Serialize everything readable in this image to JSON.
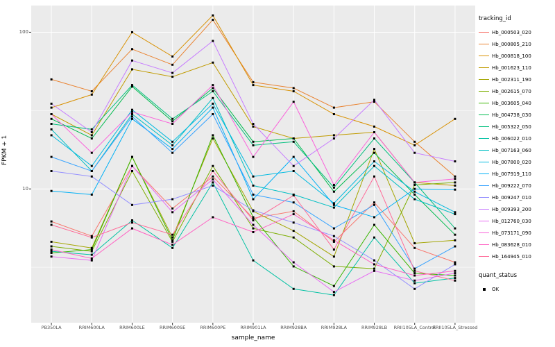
{
  "chart_data": {
    "type": "line",
    "title": "",
    "xlabel": "sample_name",
    "ylabel": "FPKM + 1",
    "y_scale": "log10",
    "ylim": [
      1.4,
      148
    ],
    "y_ticks": [
      10,
      100
    ],
    "y_tick_labels": [
      "10",
      "100"
    ],
    "y_minor_ticks": [
      3.162,
      31.62
    ],
    "legend_title": "tracking_id",
    "legend2_title": "quant_status",
    "legend2_items": [
      "OK"
    ],
    "panel_background": "#EBEBEB",
    "grid_color": "#FFFFFF",
    "point_color": "#000000",
    "point_shape": "square",
    "categories": [
      "PB350LA",
      "RRIM600LA",
      "RRIM600LE",
      "RRIM600SE",
      "RRIM600PE",
      "RRIM901LA",
      "RRIM928BA",
      "RRIM928LA",
      "RRIM928LB",
      "RRII105LA_Control",
      "RRII105LA_Stressed"
    ],
    "series": [
      {
        "name": "Hb_000503_020",
        "color": "#F8766D",
        "values": [
          6.2,
          5.0,
          14,
          7.5,
          12,
          6.5,
          7.2,
          4.6,
          8.2,
          4.2,
          3.4
        ]
      },
      {
        "name": "Hb_000805_210",
        "color": "#EA8331",
        "values": [
          50,
          42,
          78,
          62,
          120,
          48,
          44,
          33,
          36,
          20,
          12
        ]
      },
      {
        "name": "Hb_000818_100",
        "color": "#D89000",
        "values": [
          33,
          40,
          100,
          70,
          128,
          46,
          42,
          30,
          25,
          19,
          28
        ]
      },
      {
        "name": "Hb_001623_110",
        "color": "#C09B00",
        "values": [
          30,
          22,
          58,
          52,
          64,
          25,
          21,
          22,
          23,
          11,
          10.5
        ]
      },
      {
        "name": "Hb_002311_190",
        "color": "#A3A500",
        "values": [
          4.6,
          4.2,
          16,
          4.9,
          21,
          7.2,
          5.4,
          3.7,
          18,
          4.5,
          4.7
        ]
      },
      {
        "name": "Hb_002615_070",
        "color": "#7CAE00",
        "values": [
          4.3,
          4.0,
          13,
          4.6,
          14,
          5.6,
          4.9,
          3.2,
          3.1,
          10.6,
          11
        ]
      },
      {
        "name": "Hb_003605_040",
        "color": "#39B600",
        "values": [
          3.9,
          4.1,
          16,
          4.7,
          22,
          6.6,
          3.2,
          2.4,
          5.9,
          2.9,
          2.8
        ]
      },
      {
        "name": "Hb_004738_030",
        "color": "#00BB4E",
        "values": [
          28,
          21,
          45,
          27,
          44,
          20,
          21,
          9.6,
          17,
          9.2,
          5.1
        ]
      },
      {
        "name": "Hb_005322_050",
        "color": "#00BF7D",
        "values": [
          26,
          24,
          46,
          28,
          42,
          19,
          20,
          10.2,
          21,
          11,
          5.6
        ]
      },
      {
        "name": "Hb_006022_010",
        "color": "#00C1A3",
        "values": [
          4.0,
          3.8,
          6.3,
          4.2,
          11,
          3.5,
          2.3,
          2.1,
          4.9,
          2.5,
          2.7
        ]
      },
      {
        "name": "Hb_007163_060",
        "color": "#00BFC4",
        "values": [
          24,
          13,
          30,
          19,
          38,
          10.5,
          9.2,
          7.6,
          14,
          8.6,
          6.9
        ]
      },
      {
        "name": "Hb_007800_020",
        "color": "#00BAE0",
        "values": [
          22,
          14,
          32,
          20,
          35,
          12,
          13,
          8.1,
          15,
          9.6,
          7.1
        ]
      },
      {
        "name": "Hb_007919_110",
        "color": "#00B0F6",
        "values": [
          9.7,
          9.2,
          28,
          18,
          33,
          8.6,
          16,
          7.9,
          6.6,
          10,
          9.9
        ]
      },
      {
        "name": "Hb_009222_070",
        "color": "#35A2FF",
        "values": [
          16,
          13,
          29,
          17,
          30,
          9.2,
          8.2,
          5.6,
          7.9,
          3.1,
          4.3
        ]
      },
      {
        "name": "Hb_009247_010",
        "color": "#9590FF",
        "values": [
          13,
          12,
          7.9,
          8.6,
          10.5,
          7.3,
          6.1,
          5.0,
          3.5,
          2.3,
          3.3
        ]
      },
      {
        "name": "Hb_009393_200",
        "color": "#C77CFF",
        "values": [
          35,
          23,
          66,
          55,
          88,
          26,
          14,
          21,
          37,
          17,
          15
        ]
      },
      {
        "name": "Hb_012760_030",
        "color": "#E76BF3",
        "values": [
          3.7,
          3.5,
          14,
          7.1,
          11.5,
          5.9,
          3.4,
          2.2,
          3.0,
          2.6,
          2.9
        ]
      },
      {
        "name": "Hb_073171_090",
        "color": "#FA62DB",
        "values": [
          30,
          17,
          31,
          26,
          46,
          16,
          36,
          10.6,
          23,
          11,
          11.6
        ]
      },
      {
        "name": "Hb_083628_010",
        "color": "#FF61C3",
        "values": [
          4.1,
          3.6,
          5.6,
          4.4,
          6.6,
          5.3,
          6.9,
          4.7,
          3.3,
          2.8,
          3.0
        ]
      },
      {
        "name": "Hb_164945_010",
        "color": "#FF6A98",
        "values": [
          5.9,
          4.9,
          6.1,
          5.1,
          13,
          6.3,
          9.1,
          4.1,
          12,
          3.0,
          2.6
        ]
      }
    ]
  }
}
